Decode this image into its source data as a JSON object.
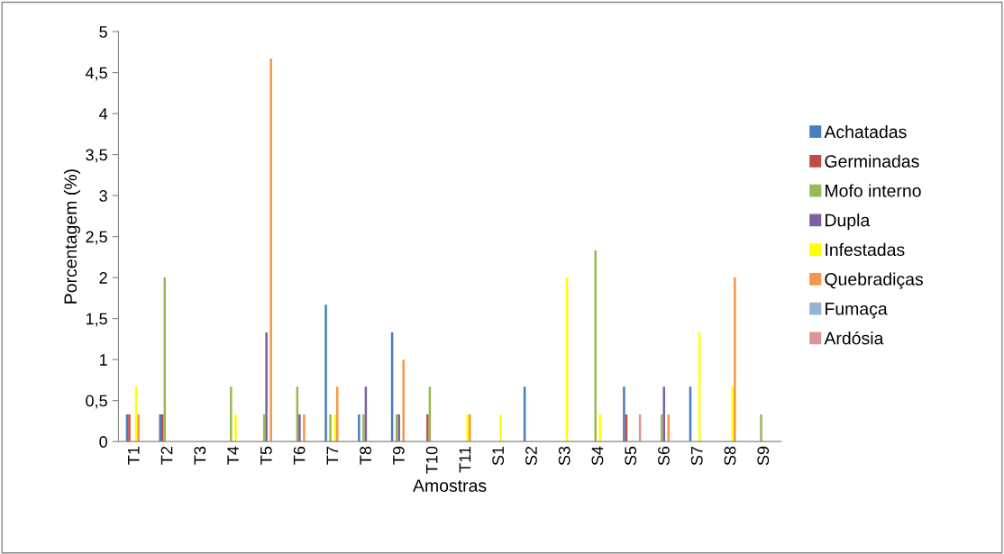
{
  "chart_data": {
    "type": "bar",
    "xlabel": "Amostras",
    "ylabel": "Porcentagem (%)",
    "categories": [
      "T1",
      "T2",
      "T3",
      "T4",
      "T5",
      "T6",
      "T7",
      "T8",
      "T9",
      "T10",
      "T11",
      "S1",
      "S2",
      "S3",
      "S4",
      "S5",
      "S6",
      "S7",
      "S8",
      "S9"
    ],
    "series": [
      {
        "name": "Achatadas",
        "color": "#4a7ebb",
        "values": [
          0.33,
          0.33,
          0,
          0,
          0,
          0,
          1.67,
          0.33,
          1.33,
          0,
          0,
          0,
          0.67,
          0,
          0,
          0.67,
          0,
          0.67,
          0,
          0
        ]
      },
      {
        "name": "Germinadas",
        "color": "#be4b48",
        "values": [
          0.33,
          0.33,
          0,
          0,
          0,
          0,
          0,
          0,
          0,
          0.33,
          0,
          0,
          0,
          0,
          0,
          0.33,
          0,
          0,
          0,
          0
        ]
      },
      {
        "name": "Mofo interno",
        "color": "#98b954",
        "values": [
          0,
          2,
          0,
          0.67,
          0.33,
          0.67,
          0.33,
          0.33,
          0.33,
          0.67,
          0,
          0,
          0,
          0,
          2.33,
          0,
          0.33,
          0,
          0,
          0.33
        ]
      },
      {
        "name": "Dupla",
        "color": "#7d60a0",
        "values": [
          0,
          0,
          0,
          0,
          1.33,
          0.33,
          0,
          0.67,
          0.33,
          0,
          0,
          0,
          0,
          0,
          0,
          0,
          0.67,
          0,
          0,
          0
        ]
      },
      {
        "name": "Infestadas",
        "color": "#ffff00",
        "values": [
          0.67,
          0,
          0,
          0.33,
          0,
          0,
          0.33,
          0,
          0,
          0,
          0.33,
          0.33,
          0,
          2,
          0.33,
          0,
          0,
          1.33,
          0.67,
          0
        ]
      },
      {
        "name": "Quebradiças",
        "color": "#f79646",
        "values": [
          0.33,
          0,
          0,
          0,
          4.67,
          0.33,
          0.67,
          0,
          1,
          0,
          0.33,
          0,
          0,
          0,
          0,
          0,
          0.33,
          0,
          2,
          0
        ]
      },
      {
        "name": "Fumaça",
        "color": "#95b3d7",
        "values": [
          0,
          0,
          0,
          0,
          0,
          0,
          0,
          0,
          0,
          0,
          0,
          0,
          0,
          0,
          0,
          0,
          0,
          0,
          0,
          0
        ]
      },
      {
        "name": "Ardósia",
        "color": "#d99694",
        "values": [
          0,
          0,
          0,
          0,
          0,
          0,
          0,
          0,
          0,
          0,
          0,
          0,
          0,
          0,
          0,
          0.33,
          0,
          0,
          0,
          0
        ]
      }
    ],
    "ylim": [
      0,
      5
    ],
    "yticks": [
      0,
      {
        "value": 0.5,
        "label": "0,5"
      },
      1,
      {
        "value": 1.5,
        "label": "1,5"
      },
      2,
      {
        "value": 2.5,
        "label": "2,5"
      },
      3,
      {
        "value": 3.5,
        "label": "3,5"
      },
      4,
      {
        "value": 4.5,
        "label": "4,5"
      },
      5
    ],
    "grid": false,
    "legend": "right"
  }
}
